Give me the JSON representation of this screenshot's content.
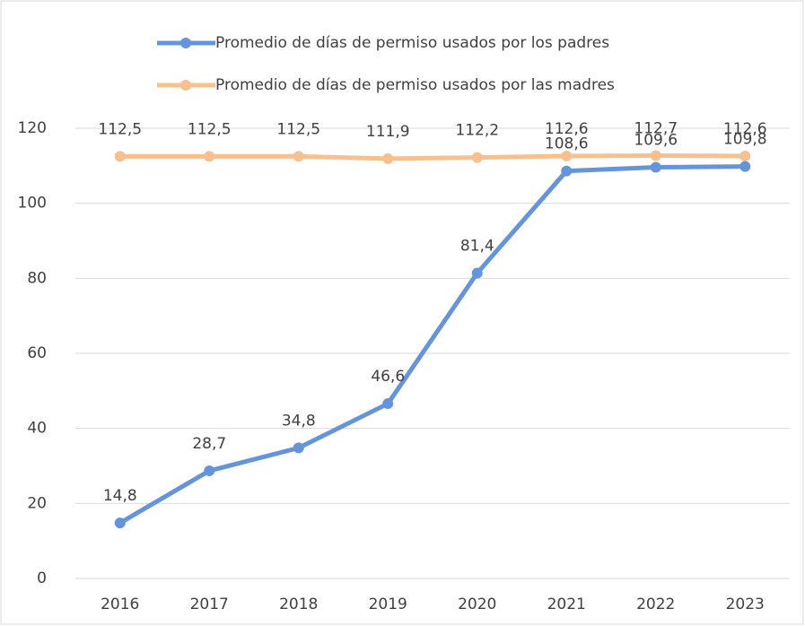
{
  "chart_data": {
    "type": "line",
    "categories": [
      "2016",
      "2017",
      "2018",
      "2019",
      "2020",
      "2021",
      "2022",
      "2023"
    ],
    "series": [
      {
        "name": "Promedio de días de permiso usados por los padres",
        "color": "#6495dc",
        "values": [
          14.8,
          28.7,
          34.8,
          46.6,
          81.4,
          108.6,
          109.6,
          109.8
        ],
        "value_labels": [
          "14,8",
          "28,7",
          "34,8",
          "46,6",
          "81,4",
          "108,6",
          "109,6",
          "109,8"
        ]
      },
      {
        "name": "Promedio de días de permiso usados por las madres",
        "color": "#f8c08e",
        "values": [
          112.5,
          112.5,
          112.5,
          111.9,
          112.2,
          112.6,
          112.7,
          112.6
        ],
        "value_labels": [
          "112,5",
          "112,5",
          "112,5",
          "111,9",
          "112,2",
          "112,6",
          "112,7",
          "112,6"
        ]
      }
    ],
    "ylim": [
      0,
      120
    ],
    "yticks": [
      0,
      20,
      40,
      60,
      80,
      100,
      120
    ],
    "grid": true
  }
}
